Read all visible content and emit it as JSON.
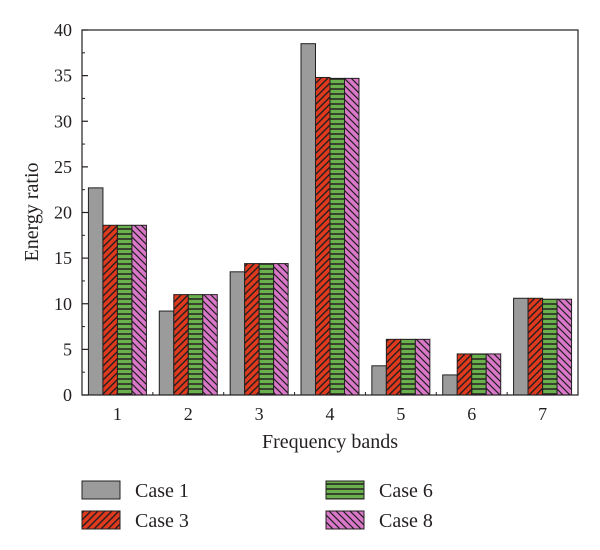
{
  "chart_data": {
    "type": "bar",
    "xlabel": "Frequency bands",
    "ylabel": "Energy ratio",
    "categories": [
      "1",
      "2",
      "3",
      "4",
      "5",
      "6",
      "7"
    ],
    "ylim": [
      0,
      40
    ],
    "yticks": [
      0,
      5,
      10,
      15,
      20,
      25,
      30,
      35,
      40
    ],
    "grid": false,
    "legend_position": "bottom",
    "series": [
      {
        "name": "Case 1",
        "values": [
          22.7,
          9.2,
          13.5,
          38.5,
          3.2,
          2.2,
          10.6
        ],
        "color": "#9b9b9b",
        "pattern": "solid"
      },
      {
        "name": "Case 3",
        "values": [
          18.6,
          11.0,
          14.4,
          34.8,
          6.1,
          4.5,
          10.6
        ],
        "color": "#e03a1e",
        "pattern": "diagonal-hatch"
      },
      {
        "name": "Case 6",
        "values": [
          18.6,
          11.0,
          14.4,
          34.7,
          6.1,
          4.5,
          10.5
        ],
        "color": "#6ab04c",
        "pattern": "horizontal-lines"
      },
      {
        "name": "Case 8",
        "values": [
          18.6,
          11.0,
          14.4,
          34.7,
          6.1,
          4.5,
          10.5
        ],
        "color": "#d977c9",
        "pattern": "diagonal-hatch-reverse"
      }
    ]
  }
}
